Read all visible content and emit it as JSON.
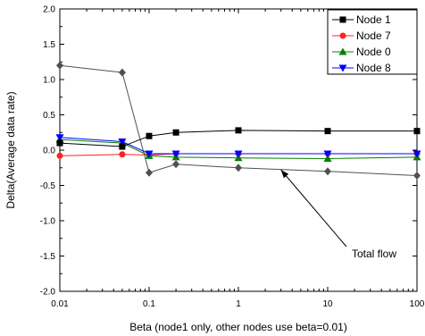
{
  "chart_data": {
    "type": "line",
    "xscale": "log",
    "xlabel": "Beta (node1 only, other nodes use beta=0.01)",
    "ylabel": "Delta(Average data rate)",
    "xlim": [
      0.01,
      100
    ],
    "ylim": [
      -2.0,
      2.0
    ],
    "xticks": [
      0.01,
      0.1,
      1,
      10,
      100
    ],
    "xtick_labels": [
      "0.01",
      "0.1",
      "1",
      "10",
      "100"
    ],
    "yticks": [
      -2.0,
      -1.5,
      -1.0,
      -0.5,
      0.0,
      0.5,
      1.0,
      1.5,
      2.0
    ],
    "ytick_labels": [
      "-2.0",
      "-1.5",
      "-1.0",
      "-0.5",
      "0.0",
      "0.5",
      "1.0",
      "1.5",
      "2.0"
    ],
    "grid": false,
    "legend_position": "top-right",
    "x": [
      0.01,
      0.05,
      0.1,
      0.2,
      1,
      10,
      100
    ],
    "series": [
      {
        "name": "Node 1",
        "color": "#000000",
        "marker": "square",
        "values": [
          0.1,
          0.05,
          0.2,
          0.25,
          0.28,
          0.27,
          0.27
        ],
        "in_legend": true
      },
      {
        "name": "Node 7",
        "color": "#ff2020",
        "marker": "circle",
        "values": [
          -0.08,
          -0.06,
          -0.07,
          -0.05,
          -0.05,
          -0.05,
          -0.05
        ],
        "in_legend": true
      },
      {
        "name": "Node 0",
        "color": "#008000",
        "marker": "triangle-up",
        "values": [
          0.15,
          0.1,
          -0.08,
          -0.1,
          -0.11,
          -0.12,
          -0.1
        ],
        "in_legend": true
      },
      {
        "name": "Node 8",
        "color": "#0000ff",
        "marker": "triangle-down",
        "values": [
          0.18,
          0.12,
          -0.05,
          -0.05,
          -0.05,
          -0.05,
          -0.05
        ],
        "in_legend": true
      },
      {
        "name": "Total flow",
        "color": "#505050",
        "marker": "diamond",
        "values": [
          1.2,
          1.1,
          -0.32,
          -0.2,
          -0.25,
          -0.3,
          -0.36
        ],
        "in_legend": false
      }
    ],
    "annotations": [
      {
        "text": "Total flow",
        "points_to_x": 3,
        "points_to_y": -0.28
      }
    ]
  }
}
